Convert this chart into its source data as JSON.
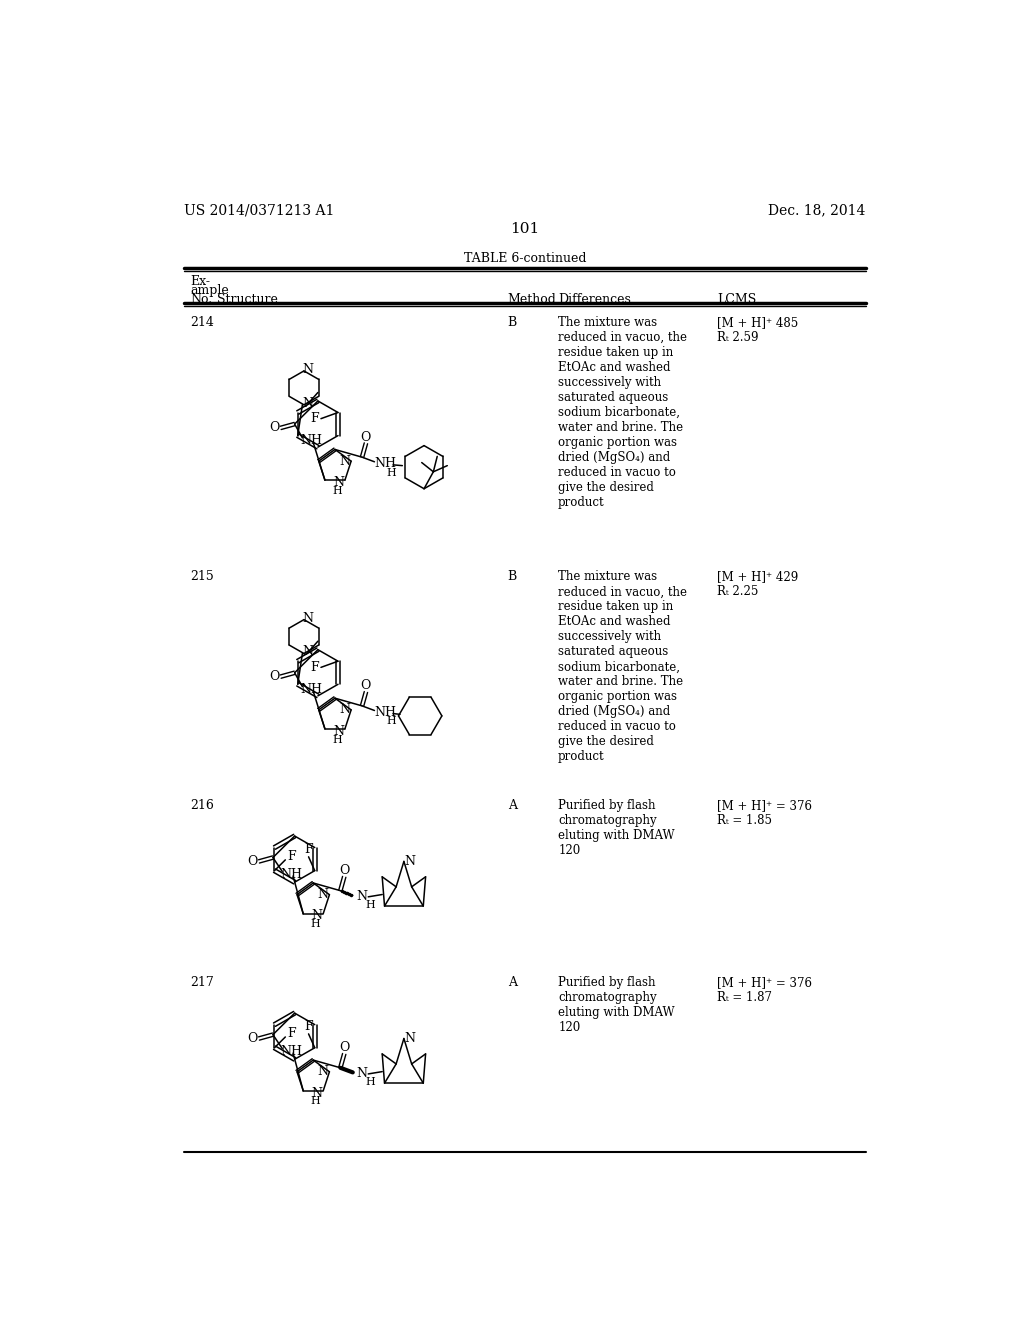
{
  "page_number": "101",
  "patent_left": "US 2014/0371213 A1",
  "patent_right": "Dec. 18, 2014",
  "table_title": "TABLE 6-continued",
  "rows": [
    {
      "no": "214",
      "method": "B",
      "differences": "The mixture was\nreduced in vacuo, the\nresidue taken up in\nEtOAc and washed\nsuccessively with\nsaturated aqueous\nsodium bicarbonate,\nwater and brine. The\norganic portion was\ndried (MgSO₄) and\nreduced in vacuo to\ngive the desired\nproduct",
      "lcms": "[M + H]⁺ 485\nRₜ 2.59"
    },
    {
      "no": "215",
      "method": "B",
      "differences": "The mixture was\nreduced in vacuo, the\nresidue taken up in\nEtOAc and washed\nsuccessively with\nsaturated aqueous\nsodium bicarbonate,\nwater and brine. The\norganic portion was\ndried (MgSO₄) and\nreduced in vacuo to\ngive the desired\nproduct",
      "lcms": "[M + H]⁺ 429\nRₜ 2.25"
    },
    {
      "no": "216",
      "method": "A",
      "differences": "Purified by flash\nchromatography\neluting with DMAW\n120",
      "lcms": "[M + H]⁺ = 376\nRₜ = 1.85"
    },
    {
      "no": "217",
      "method": "A",
      "differences": "Purified by flash\nchromatography\neluting with DMAW\n120",
      "lcms": "[M + H]⁺ = 376\nRₜ = 1.87"
    }
  ],
  "bg_color": "#ffffff",
  "text_color": "#000000"
}
